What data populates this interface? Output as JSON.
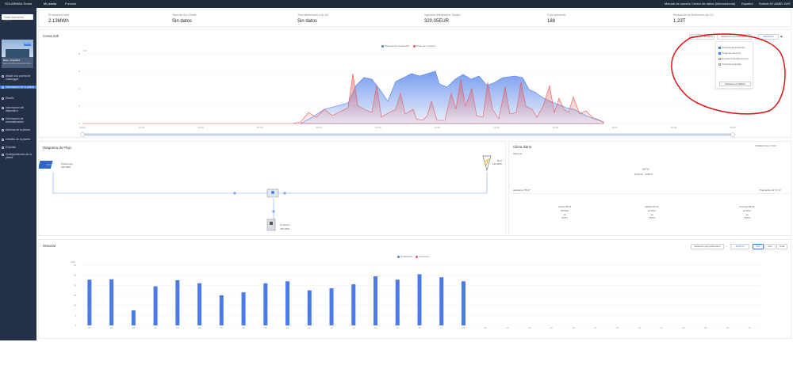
{
  "topbar": {
    "logo": "SOLARMAN Smart",
    "tabs": [
      "Mi planta",
      "Función"
    ],
    "manual": "Manual de usuario",
    "data_center": "Centro de datos (Internacional)",
    "language": "Español",
    "user": "Submit AY AABB 1WS"
  },
  "sidebar": {
    "create_plant": "Crear una nueva planta",
    "plant_name": "Boko_Virgual14",
    "plant_sub": "Energía solar-almacenamiento",
    "plant_badge": "Normal",
    "items": [
      {
        "label": "añadir una puerta de Datalogger",
        "active": false
      },
      {
        "label": "Información de la planta",
        "active": true
      },
      {
        "label": "Diseño",
        "active": false
      },
      {
        "label": "Información del dispositivo",
        "active": false
      },
      {
        "label": "Información de automatización",
        "active": false
      },
      {
        "label": "Alarmas de la planta",
        "active": false
      },
      {
        "label": "Detalles de la planta",
        "active": false
      },
      {
        "label": "Exportar",
        "active": false
      },
      {
        "label": "Configuraciones de la planta",
        "active": false
      }
    ]
  },
  "stats": [
    {
      "label": "Producción total",
      "value": "2.13MWh"
    },
    {
      "label": "Tasa de recu Emitir",
      "value": "Sin datos"
    },
    {
      "label": "Total alimentado a la red",
      "value": "Sin datos"
    },
    {
      "label": "Ingresos Anticipados Totales",
      "value": "320.05EUR"
    },
    {
      "label": "Días operando",
      "value": "188"
    },
    {
      "label": "Reducción de Emisiones de CO",
      "value": "1.23T"
    }
  ],
  "curve": {
    "title": "Curva 24h",
    "btn_compare": "Gestión de comparar",
    "btn_params": "Selección de parámetros",
    "date": "2022/11/2",
    "legend": [
      {
        "name": "Potencia de producción",
        "color": "#4a7be8"
      },
      {
        "name": "Poder de consumo",
        "color": "#e85a5a"
      }
    ],
    "y_unit": "kW",
    "y_ticks": [
      "8",
      "6",
      "4",
      "2",
      "0"
    ],
    "x_ticks": [
      "00:00",
      "02:00",
      "04:00",
      "06:00",
      "08:00",
      "10:00",
      "12:00",
      "14:00",
      "16:00",
      "18:00",
      "20:00",
      "22:00"
    ],
    "menu": {
      "options": [
        {
          "label": "Potencia de producción",
          "checked": true
        },
        {
          "label": "Poder de consumo",
          "checked": true
        },
        {
          "label": "Energía comprada a la red",
          "checked": false
        },
        {
          "label": "Potencia comprada",
          "checked": false
        }
      ],
      "restore": "Restaurar por defecto"
    }
  },
  "flow": {
    "title": "Diagrama de Flujo",
    "production_label": "Producción",
    "production_value": "200.30W",
    "grid_label": "Red",
    "grid_value": "130.00W",
    "consumption_label": "Consumo",
    "consumption_value": "320.30W"
  },
  "weather": {
    "title": "Clima diario",
    "units_label": "Unidades hora v: 3 h/m",
    "city": "Valencia",
    "temp": "20°C",
    "cond": "Lluvioso · 22/8°C",
    "sunrise": "amanecer 06:47",
    "sunset": "Puesta de sol 17:13",
    "days": [
      {
        "day": "martes 08-16",
        "cond": "Nublado",
        "temp": "7/18°C"
      },
      {
        "day": "sábado 08-16",
        "cond": "Lluvioso",
        "temp": "7/18°C"
      },
      {
        "day": "domingo 08-09",
        "cond": "Lluvioso",
        "temp": "7/18°C"
      }
    ]
  },
  "history": {
    "title": "Historial",
    "btn_params": "Selección de parámetros",
    "date": "2022/10",
    "tabs": [
      "Mes",
      "Año",
      "Total"
    ],
    "active_tab": "Mes",
    "legend": [
      {
        "name": "Producción",
        "color": "#4a7be8"
      },
      {
        "name": "Consumo",
        "color": "#e85a5a"
      }
    ],
    "y_unit": "kWh",
    "y_ticks": [
      "30",
      "25",
      "20",
      "15",
      "10",
      "5",
      "0"
    ]
  },
  "chart_data": {
    "type": "bar",
    "categories": [
      "01",
      "02",
      "03",
      "04",
      "05",
      "06",
      "07",
      "08",
      "09",
      "10",
      "11",
      "12",
      "13",
      "14",
      "15",
      "16",
      "17",
      "18",
      "19",
      "20",
      "21",
      "22",
      "23",
      "24",
      "25",
      "26",
      "27",
      "28",
      "29",
      "30",
      "31"
    ],
    "series": [
      {
        "name": "Producción",
        "values": [
          22.8,
          23.0,
          7.5,
          19.5,
          22.5,
          21.0,
          15.0,
          16.5,
          21.0,
          22.0,
          17.5,
          18.5,
          20.5,
          24.5,
          22.8,
          25.5,
          24.0,
          22.0,
          0,
          0,
          0,
          0,
          0,
          0,
          0,
          0,
          0,
          0,
          0,
          0,
          0
        ]
      }
    ],
    "ylim": [
      0,
      30
    ]
  }
}
